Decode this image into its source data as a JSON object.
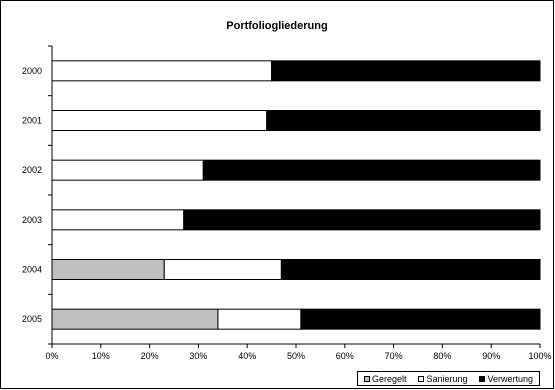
{
  "chart_data": {
    "type": "bar",
    "orientation": "horizontal",
    "stacked": "percent",
    "title": "Portfoliogliederung",
    "xlabel": "",
    "ylabel": "",
    "categories": [
      "2000",
      "2001",
      "2002",
      "2003",
      "2004",
      "2005"
    ],
    "x_ticks": [
      "0%",
      "10%",
      "20%",
      "30%",
      "40%",
      "50%",
      "60%",
      "70%",
      "80%",
      "90%",
      "100%"
    ],
    "xlim": [
      0,
      100
    ],
    "grid": false,
    "legend": "bottom-right",
    "series": [
      {
        "name": "Geregelt",
        "color": "#c0c0c0",
        "values": [
          0,
          0,
          0,
          0,
          23,
          34
        ]
      },
      {
        "name": "Sanierung",
        "color": "#ffffff",
        "values": [
          45,
          44,
          31,
          27,
          24,
          17
        ]
      },
      {
        "name": "Verwertung",
        "color": "#000000",
        "values": [
          55,
          56,
          69,
          73,
          53,
          49
        ]
      }
    ]
  }
}
